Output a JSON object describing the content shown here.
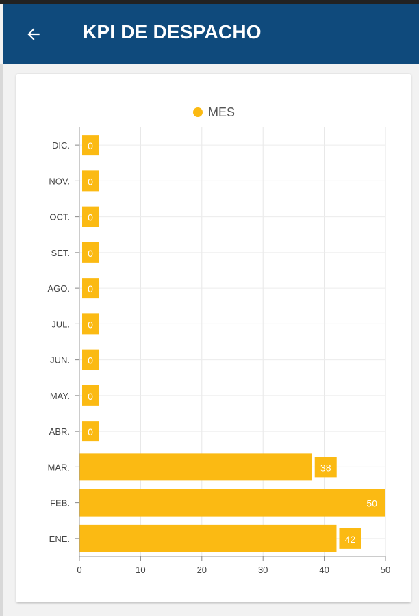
{
  "appbar": {
    "title": "KPI DE DESPACHO",
    "back_icon": "arrow-back-icon",
    "background": "#0f4a7c"
  },
  "legend": {
    "label": "MES",
    "color": "#fbba13"
  },
  "chart_data": {
    "type": "bar",
    "orientation": "horizontal",
    "categories": [
      "ENE.",
      "FEB.",
      "MAR.",
      "ABR.",
      "MAY.",
      "JUN.",
      "JUL.",
      "AGO.",
      "SET.",
      "OCT.",
      "NOV.",
      "DIC."
    ],
    "series": [
      {
        "name": "MES",
        "values": [
          42,
          50,
          38,
          0,
          0,
          0,
          0,
          0,
          0,
          0,
          0,
          0
        ]
      }
    ],
    "xlim": [
      0,
      50
    ],
    "xticks": [
      0,
      10,
      20,
      30,
      40,
      50
    ],
    "bar_color": "#fbba13",
    "grid": true,
    "legend_position": "top-center",
    "data_labels": true
  }
}
